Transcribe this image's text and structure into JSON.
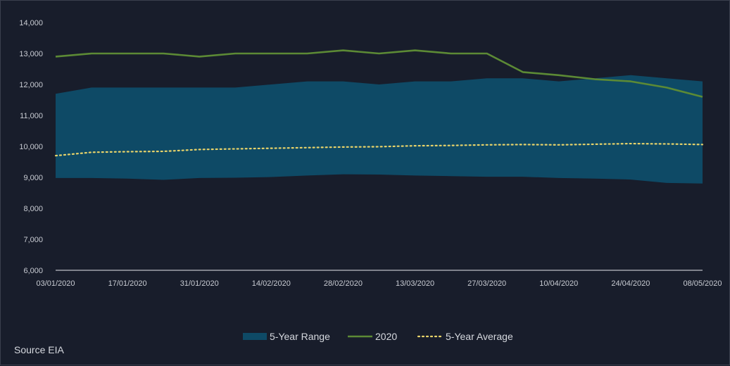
{
  "chart_data": {
    "type": "area",
    "x": [
      "03/01/2020",
      "10/01/2020",
      "17/01/2020",
      "24/01/2020",
      "31/01/2020",
      "07/02/2020",
      "14/02/2020",
      "21/02/2020",
      "28/02/2020",
      "06/03/2020",
      "13/03/2020",
      "20/03/2020",
      "27/03/2020",
      "03/04/2020",
      "10/04/2020",
      "17/04/2020",
      "24/04/2020",
      "01/05/2020",
      "08/05/2020"
    ],
    "x_tick_labels": [
      "03/01/2020",
      "17/01/2020",
      "31/01/2020",
      "14/02/2020",
      "28/02/2020",
      "13/03/2020",
      "27/03/2020",
      "10/04/2020",
      "24/04/2020",
      "08/05/2020"
    ],
    "ylim": [
      6000,
      14000
    ],
    "y_ticks": [
      6000,
      7000,
      8000,
      9000,
      10000,
      11000,
      12000,
      13000,
      14000
    ],
    "y_tick_labels": [
      "6,000",
      "7,000",
      "8,000",
      "9,000",
      "10,000",
      "11,000",
      "12,000",
      "13,000",
      "14,000"
    ],
    "grid": false,
    "legend_position": "bottom-center",
    "series": [
      {
        "name": "5-Year Range",
        "kind": "range",
        "color": "#0e4a66",
        "low": [
          8980,
          8980,
          8960,
          8920,
          8980,
          8990,
          9010,
          9060,
          9100,
          9090,
          9060,
          9040,
          9020,
          9020,
          8980,
          8960,
          8930,
          8820,
          8800
        ],
        "high": [
          11700,
          11900,
          11900,
          11900,
          11900,
          11900,
          12000,
          12100,
          12100,
          12000,
          12100,
          12100,
          12200,
          12200,
          12100,
          12200,
          12300,
          12200,
          12100
        ]
      },
      {
        "name": "2020",
        "kind": "line",
        "color": "#5c8a35",
        "values": [
          12900,
          13000,
          13000,
          13000,
          12900,
          13000,
          13000,
          13000,
          13100,
          13000,
          13100,
          13000,
          13000,
          12400,
          12300,
          12170,
          12100,
          11900,
          11600
        ]
      },
      {
        "name": "5-Year Average",
        "kind": "dotted",
        "color": "#e8d36a",
        "values": [
          9700,
          9810,
          9830,
          9840,
          9900,
          9920,
          9940,
          9960,
          9980,
          9990,
          10020,
          10030,
          10050,
          10060,
          10050,
          10070,
          10090,
          10080,
          10060
        ]
      }
    ]
  },
  "source_label": "Source EIA"
}
